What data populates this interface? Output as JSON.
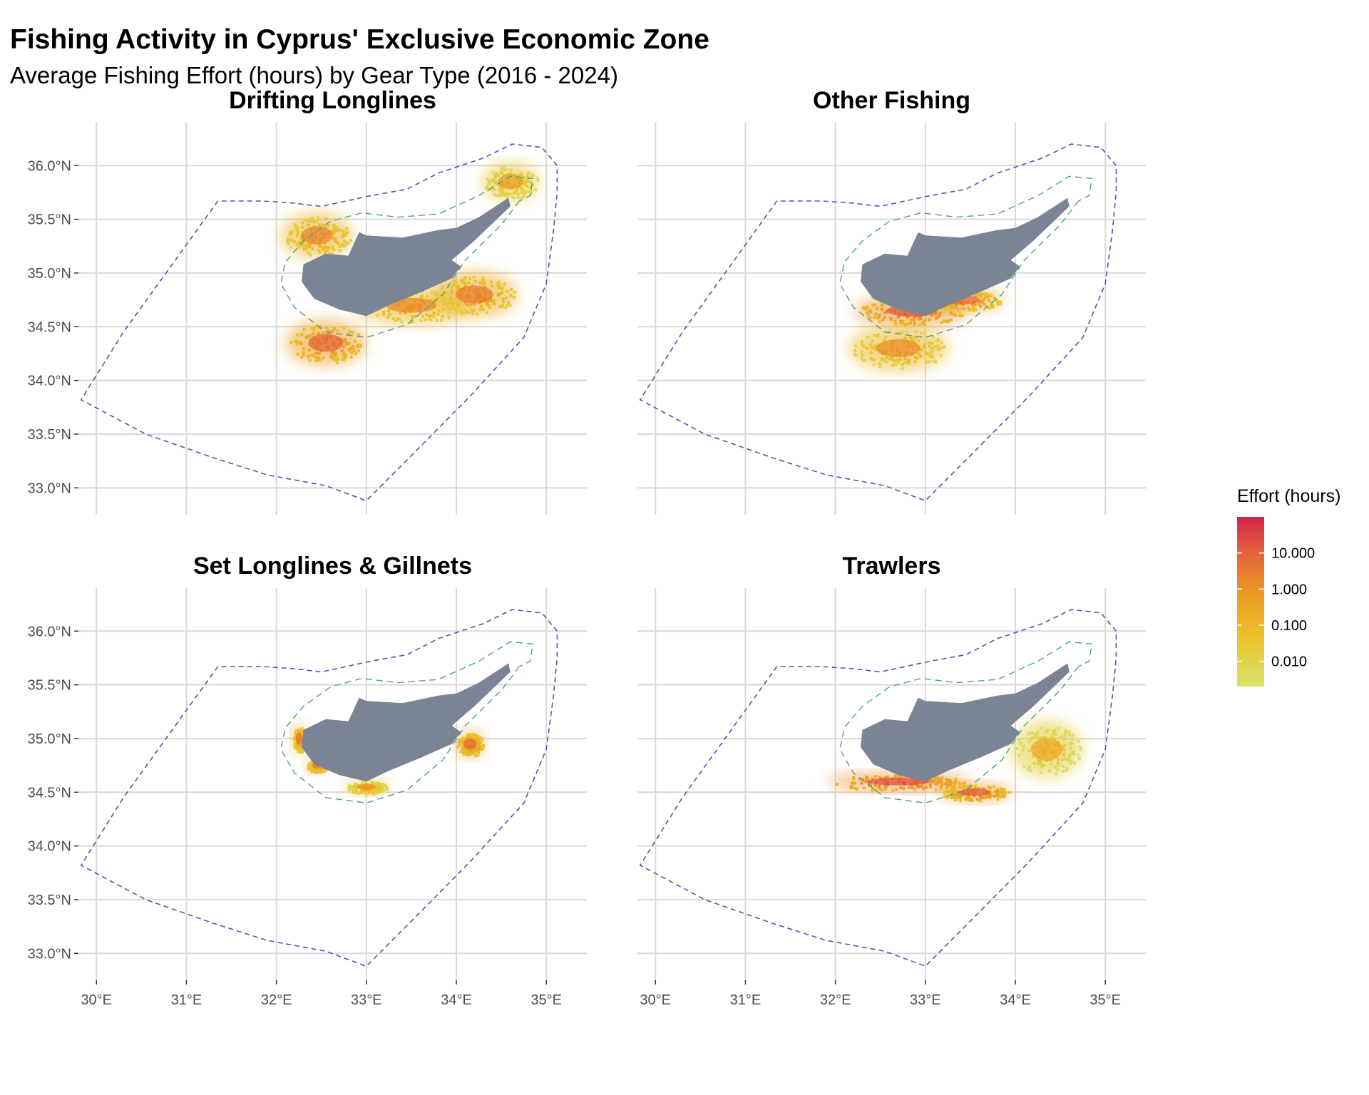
{
  "title": "Fishing Activity in Cyprus' Exclusive Economic Zone",
  "subtitle": "Average Fishing Effort (hours) by Gear Type (2016 - 2024)",
  "colors": {
    "land": "#7a8494",
    "eez_boundary": "#5552b5",
    "depth_contour": "#4aa387",
    "grid": "#d9d9d9",
    "scale_low": "#d6e36a",
    "scale_mid_low": "#ecc12b",
    "scale_mid": "#eb9a24",
    "scale_mid_high": "#e3603c",
    "scale_high": "#d1234b"
  },
  "chart_data": {
    "type": "heatmap",
    "facets": [
      {
        "name": "Drifting Longlines"
      },
      {
        "name": "Other Fishing"
      },
      {
        "name": "Set Longlines & Gillnets"
      },
      {
        "name": "Trawlers"
      }
    ],
    "x_ticks": [
      "30°E",
      "31°E",
      "32°E",
      "33°E",
      "34°E",
      "35°E"
    ],
    "x_values": [
      30,
      31,
      32,
      33,
      34,
      35
    ],
    "y_ticks": [
      "33.0°N",
      "33.5°N",
      "34.0°N",
      "34.5°N",
      "35.0°N",
      "35.5°N",
      "36.0°N"
    ],
    "y_values": [
      33.0,
      33.5,
      34.0,
      34.5,
      35.0,
      35.5,
      36.0
    ],
    "xlim": [
      29.8,
      35.45
    ],
    "ylim": [
      32.75,
      36.4
    ],
    "legend": {
      "title": "Effort (hours)",
      "placement": "right",
      "scale": "log",
      "range": [
        0.002,
        100
      ],
      "ticks": [
        "10.000",
        "1.000",
        "0.100",
        "0.010"
      ],
      "tick_values": [
        10,
        1,
        0.1,
        0.01
      ]
    },
    "eez_boundary": [
      [
        35.12,
        36.0
      ],
      [
        34.95,
        36.17
      ],
      [
        34.62,
        36.2
      ],
      [
        34.3,
        36.07
      ],
      [
        33.8,
        35.93
      ],
      [
        33.45,
        35.78
      ],
      [
        33.05,
        35.72
      ],
      [
        32.5,
        35.62
      ],
      [
        32.2,
        35.65
      ],
      [
        31.85,
        35.67
      ],
      [
        31.35,
        35.67
      ],
      [
        30.3,
        34.45
      ],
      [
        29.83,
        33.82
      ],
      [
        30.55,
        33.5
      ],
      [
        31.3,
        33.28
      ],
      [
        31.9,
        33.12
      ],
      [
        32.55,
        33.02
      ],
      [
        33.0,
        32.88
      ],
      [
        33.5,
        33.3
      ],
      [
        34.15,
        33.85
      ],
      [
        34.75,
        34.4
      ],
      [
        35.0,
        34.9
      ],
      [
        35.08,
        35.4
      ],
      [
        35.12,
        35.75
      ],
      [
        35.12,
        36.0
      ]
    ],
    "depth_contour": [
      [
        34.7,
        35.67
      ],
      [
        34.5,
        35.45
      ],
      [
        34.1,
        35.12
      ],
      [
        33.85,
        34.8
      ],
      [
        33.45,
        34.52
      ],
      [
        33.0,
        34.4
      ],
      [
        32.55,
        34.45
      ],
      [
        32.2,
        34.68
      ],
      [
        32.05,
        34.9
      ],
      [
        32.1,
        35.1
      ],
      [
        32.3,
        35.3
      ],
      [
        32.6,
        35.48
      ],
      [
        32.95,
        35.56
      ],
      [
        33.35,
        35.52
      ],
      [
        33.8,
        35.55
      ],
      [
        34.25,
        35.72
      ],
      [
        34.6,
        35.9
      ],
      [
        34.85,
        35.88
      ],
      [
        34.82,
        35.72
      ],
      [
        34.7,
        35.67
      ]
    ],
    "coastline": [
      [
        34.58,
        35.7
      ],
      [
        34.25,
        35.52
      ],
      [
        34.0,
        35.42
      ],
      [
        33.8,
        35.4
      ],
      [
        33.4,
        35.33
      ],
      [
        33.0,
        35.35
      ],
      [
        32.92,
        35.38
      ],
      [
        32.8,
        35.16
      ],
      [
        32.55,
        35.18
      ],
      [
        32.3,
        35.08
      ],
      [
        32.28,
        34.92
      ],
      [
        32.42,
        34.76
      ],
      [
        32.7,
        34.66
      ],
      [
        33.0,
        34.6
      ],
      [
        33.25,
        34.7
      ],
      [
        33.6,
        34.82
      ],
      [
        33.95,
        34.95
      ],
      [
        34.05,
        35.06
      ],
      [
        33.95,
        35.12
      ],
      [
        34.2,
        35.3
      ],
      [
        34.6,
        35.62
      ],
      [
        34.58,
        35.7
      ]
    ],
    "hotspots": [
      [
        {
          "lon": 32.55,
          "lat": 34.35,
          "rx": 0.28,
          "ry": 0.12,
          "effort": 8.0
        },
        {
          "lon": 34.2,
          "lat": 34.8,
          "rx": 0.3,
          "ry": 0.12,
          "effort": 3.0
        },
        {
          "lon": 32.45,
          "lat": 35.35,
          "rx": 0.25,
          "ry": 0.12,
          "effort": 2.0
        },
        {
          "lon": 33.5,
          "lat": 34.7,
          "rx": 0.4,
          "ry": 0.1,
          "effort": 1.5
        },
        {
          "lon": 34.6,
          "lat": 35.85,
          "rx": 0.2,
          "ry": 0.1,
          "effort": 0.5
        }
      ],
      [
        {
          "lon": 32.85,
          "lat": 34.65,
          "rx": 0.4,
          "ry": 0.08,
          "effort": 15.0
        },
        {
          "lon": 33.4,
          "lat": 34.75,
          "rx": 0.3,
          "ry": 0.06,
          "effort": 6.0
        },
        {
          "lon": 32.7,
          "lat": 34.3,
          "rx": 0.35,
          "ry": 0.12,
          "effort": 1.2
        }
      ],
      [
        {
          "lon": 34.15,
          "lat": 34.95,
          "rx": 0.1,
          "ry": 0.07,
          "effort": 6.0
        },
        {
          "lon": 32.25,
          "lat": 35.0,
          "rx": 0.05,
          "ry": 0.08,
          "effort": 4.0
        },
        {
          "lon": 32.45,
          "lat": 34.75,
          "rx": 0.08,
          "ry": 0.04,
          "effort": 3.0
        },
        {
          "lon": 33.0,
          "lat": 34.55,
          "rx": 0.15,
          "ry": 0.04,
          "effort": 1.0
        }
      ],
      [
        {
          "lon": 32.7,
          "lat": 34.6,
          "rx": 0.5,
          "ry": 0.05,
          "effort": 20.0
        },
        {
          "lon": 33.55,
          "lat": 34.5,
          "rx": 0.25,
          "ry": 0.05,
          "effort": 10.0
        },
        {
          "lon": 34.35,
          "lat": 34.9,
          "rx": 0.25,
          "ry": 0.15,
          "effort": 0.3
        }
      ]
    ]
  }
}
